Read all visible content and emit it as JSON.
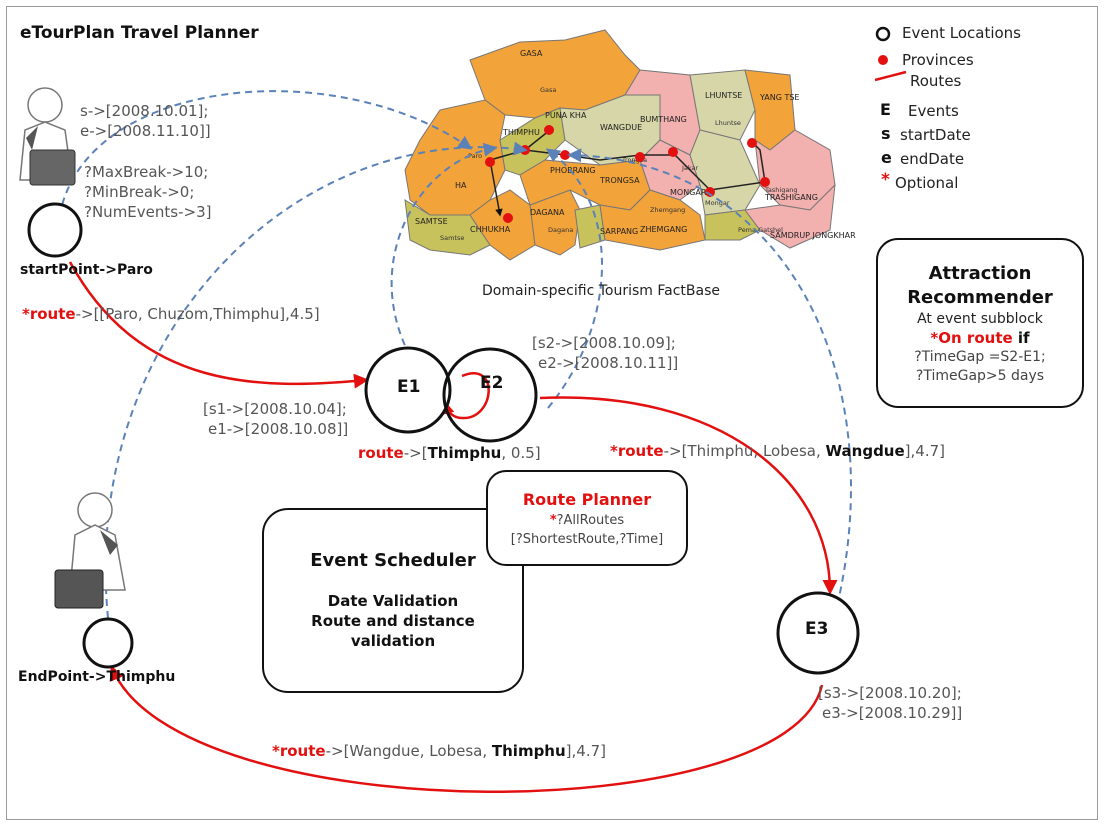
{
  "title": "eTourPlan Travel Planner",
  "legend": {
    "event_locations": "Event Locations",
    "provinces": "Provinces",
    "routes": "Routes",
    "events_key": "E",
    "events_label": "Events",
    "start_key": "s",
    "start_label": "startDate",
    "end_key": "e",
    "end_label": "endDate",
    "optional_key": "*",
    "optional_label": "Optional"
  },
  "traveller_params": {
    "start_date": "s->[2008.10.01];",
    "end_date": "e->[2008.11.10]]",
    "max_break": "?MaxBreak->10;",
    "min_break": "?MinBreak->0;",
    "num_events": "?NumEvents->3]"
  },
  "start_point": {
    "label": "startPoint->",
    "place": "Paro"
  },
  "end_point": {
    "label": "EndPoint->",
    "place": "Thimphu"
  },
  "map": {
    "caption": "Domain-specific Tourism FactBase",
    "region_labels": [
      "GASA",
      "THIMPHU",
      "PUNA KHA",
      "WANGDUE",
      "LHUNTSE",
      "YANG TSE",
      "BUMTHANG",
      "MONGAR",
      "TRASHIGANG",
      "TRONGSA",
      "PHOBRANG",
      "DAGANA",
      "CHHUKHA",
      "SAMTSE",
      "SARPANG",
      "ZHEMGANG",
      "SAMDRUP JONGKHAR",
      "HA",
      "Paro",
      "Gasa",
      "Tashigang",
      "Mongar",
      "Dagana",
      "Zhemgang",
      "Jakar",
      "Trongsa",
      "Lhuntse",
      "Samtse",
      "Pema Gatshel"
    ]
  },
  "events": {
    "e1": "E1",
    "e2": "E2",
    "e3": "E3",
    "e1_dates": {
      "start": "[s1->[2008.10.04];",
      "end": "e1->[2008.10.08]]"
    },
    "e2_dates": {
      "start": "[s2->[2008.10.09];",
      "end": "e2->[2008.10.11]]"
    },
    "e3_dates": {
      "start": "[s3->[2008.10.20];",
      "end": "e3->[2008.10.29]]"
    }
  },
  "routes": {
    "r1": {
      "star": "*",
      "kw": "route",
      "text": "->[[Paro, Chuzom,Thimphu],4.5]"
    },
    "r2": {
      "kw": "route",
      "pre": "->[",
      "bold": "Thimphu",
      "post": ", 0.5]"
    },
    "r3": {
      "star": "*",
      "kw": "route",
      "pre": "->[Thimphu, Lobesa, ",
      "bold": "Wangdue",
      "post": "],4.7]"
    },
    "r4": {
      "star": "*",
      "kw": "route",
      "pre": "->[Wangdue, Lobesa, ",
      "bold": "Thimphu",
      "post": "],4.7]"
    }
  },
  "attraction": {
    "title1": "Attraction",
    "title2": "Recommender",
    "line1": "At event subblock",
    "on_route_star": "*",
    "on_route": "On route",
    "if": " if",
    "gap1": "?TimeGap =S2-E1;",
    "gap2": "?TimeGap>5 days"
  },
  "route_planner": {
    "title": "Route Planner",
    "star": "*",
    "all_routes": "?AllRoutes",
    "options": "[?ShortestRoute,?Time]"
  },
  "scheduler": {
    "title": "Event Scheduler",
    "line1": "Date Validation",
    "line2": "Route and distance",
    "line3": "validation"
  },
  "colors": {
    "route": "#e31010",
    "dashed": "#5b82b8",
    "map_orange": "#f2a33a",
    "map_pink": "#f2b0ae",
    "map_olive": "#c8c25c",
    "map_green": "#d6d6a8"
  }
}
